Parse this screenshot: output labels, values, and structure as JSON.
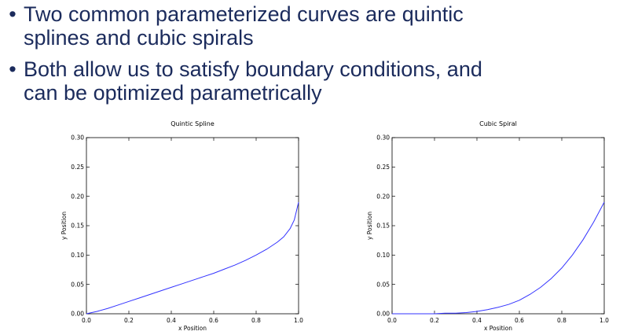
{
  "slide": {
    "bullets": [
      {
        "marker": "•",
        "lines": [
          "Two common parameterized curves are quintic",
          "splines and cubic spirals"
        ]
      },
      {
        "marker": "•",
        "lines": [
          "Both allow us to satisfy boundary conditions, and",
          "can be optimized parametrically"
        ]
      }
    ]
  },
  "chart_data": [
    {
      "type": "line",
      "title": "Quintic Spline",
      "xlabel": "x Position",
      "ylabel": "y Position",
      "xlim": [
        0.0,
        1.0
      ],
      "ylim": [
        0.0,
        0.3
      ],
      "xticks": [
        "0.0",
        "0.2",
        "0.4",
        "0.6",
        "0.8",
        "1.0"
      ],
      "yticks": [
        "0.00",
        "0.05",
        "0.10",
        "0.15",
        "0.20",
        "0.25",
        "0.30"
      ],
      "grid": false,
      "color": "#3333ff",
      "x": [
        0.0,
        0.05,
        0.1,
        0.15,
        0.2,
        0.25,
        0.3,
        0.35,
        0.4,
        0.45,
        0.5,
        0.55,
        0.6,
        0.65,
        0.7,
        0.75,
        0.8,
        0.85,
        0.9,
        0.93,
        0.96,
        0.98,
        1.0
      ],
      "y": [
        0.0,
        0.004,
        0.009,
        0.015,
        0.021,
        0.027,
        0.033,
        0.039,
        0.045,
        0.051,
        0.057,
        0.063,
        0.069,
        0.076,
        0.083,
        0.091,
        0.1,
        0.11,
        0.122,
        0.131,
        0.145,
        0.16,
        0.19
      ]
    },
    {
      "type": "line",
      "title": "Cubic Spiral",
      "xlabel": "x Position",
      "ylabel": "y Position",
      "xlim": [
        0.0,
        1.0
      ],
      "ylim": [
        0.0,
        0.3
      ],
      "xticks": [
        "0.0",
        "0.2",
        "0.4",
        "0.6",
        "0.8",
        "1.0"
      ],
      "yticks": [
        "0.00",
        "0.05",
        "0.10",
        "0.15",
        "0.20",
        "0.25",
        "0.30"
      ],
      "grid": false,
      "color": "#3333ff",
      "x": [
        0.0,
        0.05,
        0.1,
        0.15,
        0.2,
        0.25,
        0.3,
        0.35,
        0.4,
        0.45,
        0.5,
        0.55,
        0.6,
        0.65,
        0.7,
        0.75,
        0.8,
        0.85,
        0.9,
        0.95,
        1.0
      ],
      "y": [
        0.0,
        0.0,
        0.0,
        0.0,
        0.0,
        0.001,
        0.001,
        0.002,
        0.004,
        0.007,
        0.011,
        0.016,
        0.023,
        0.033,
        0.045,
        0.06,
        0.078,
        0.1,
        0.126,
        0.156,
        0.19
      ]
    }
  ]
}
